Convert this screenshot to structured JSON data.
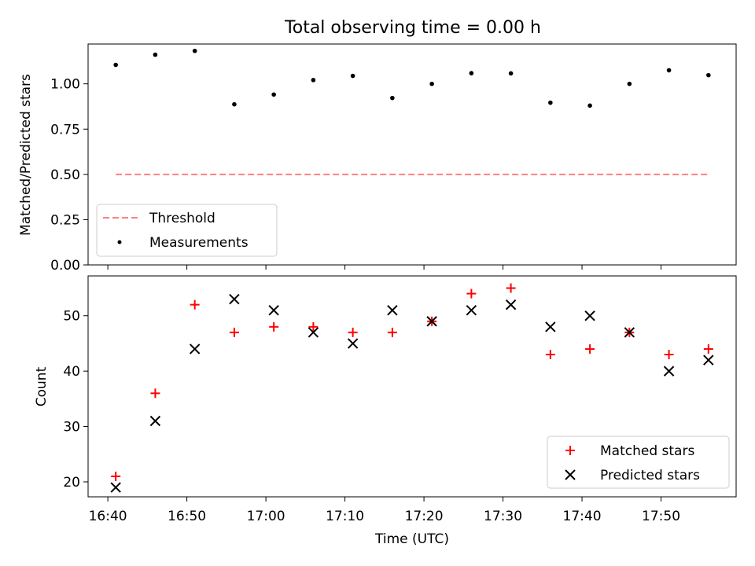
{
  "figure": {
    "title": "Total observing time = 0.00 h"
  },
  "chart_data": [
    {
      "type": "scatter",
      "panel": "top",
      "ylabel": "Matched/Predicted stars",
      "xlabel": "",
      "xlim": [
        "16:37:30",
        "17:59:30"
      ],
      "ylim": [
        0,
        1.22
      ],
      "yticks": [
        0.0,
        0.25,
        0.5,
        0.75,
        1.0
      ],
      "ytick_labels": [
        "0.00",
        "0.25",
        "0.50",
        "0.75",
        "1.00"
      ],
      "legend_placement": "lower-left",
      "series": [
        {
          "name": "Threshold",
          "kind": "dashed-line",
          "color": "#ff7f7f",
          "x": [
            "16:41",
            "17:56"
          ],
          "values": [
            0.5,
            0.5
          ]
        },
        {
          "name": "Measurements",
          "kind": "dot",
          "color": "#000000",
          "x": [
            "16:41",
            "16:46",
            "16:51",
            "16:56",
            "17:01",
            "17:06",
            "17:11",
            "17:16",
            "17:21",
            "17:26",
            "17:31",
            "17:36",
            "17:41",
            "17:46",
            "17:51",
            "17:56"
          ],
          "values": [
            1.105,
            1.161,
            1.182,
            0.887,
            0.941,
            1.021,
            1.044,
            0.922,
            1.0,
            1.059,
            1.058,
            0.896,
            0.88,
            1.0,
            1.075,
            1.048
          ]
        }
      ]
    },
    {
      "type": "scatter",
      "panel": "bottom",
      "ylabel": "Count",
      "xlabel": "Time (UTC)",
      "xlim": [
        "16:37:30",
        "17:59:30"
      ],
      "ylim": [
        17.3,
        57.2
      ],
      "yticks": [
        20,
        30,
        40,
        50
      ],
      "ytick_labels": [
        "20",
        "30",
        "40",
        "50"
      ],
      "xticks": [
        "16:40",
        "16:50",
        "17:00",
        "17:10",
        "17:20",
        "17:30",
        "17:40",
        "17:50"
      ],
      "legend_placement": "lower-right",
      "series": [
        {
          "name": "Matched stars",
          "kind": "plus",
          "color": "#ff0000",
          "x": [
            "16:41",
            "16:46",
            "16:51",
            "16:56",
            "17:01",
            "17:06",
            "17:11",
            "17:16",
            "17:21",
            "17:26",
            "17:31",
            "17:36",
            "17:41",
            "17:46",
            "17:51",
            "17:56"
          ],
          "values": [
            21,
            36,
            52,
            47,
            48,
            48,
            47,
            47,
            49,
            54,
            55,
            43,
            44,
            47,
            43,
            44
          ]
        },
        {
          "name": "Predicted stars",
          "kind": "cross",
          "color": "#000000",
          "x": [
            "16:41",
            "16:46",
            "16:51",
            "16:56",
            "17:01",
            "17:06",
            "17:11",
            "17:16",
            "17:21",
            "17:26",
            "17:31",
            "17:36",
            "17:41",
            "17:46",
            "17:51",
            "17:56"
          ],
          "values": [
            19,
            31,
            44,
            53,
            51,
            47,
            45,
            51,
            49,
            51,
            52,
            48,
            50,
            47,
            40,
            42
          ]
        }
      ]
    }
  ]
}
